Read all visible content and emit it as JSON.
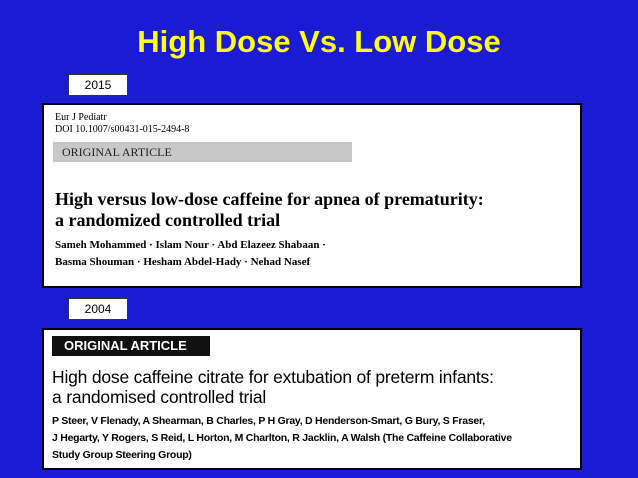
{
  "slide": {
    "title": "High Dose Vs. Low Dose",
    "papers": [
      {
        "year": "2015",
        "journal": "Eur J Pediatr",
        "doi": "DOI 10.1007/s00431-015-2494-8",
        "section": "ORIGINAL ARTICLE",
        "title_lines": [
          "High versus low-dose caffeine for apnea of prematurity:",
          "a randomized controlled trial"
        ],
        "author_lines": [
          "Sameh Mohammed · Islam Nour · Abd Elazeez Shabaan ·",
          "Basma Shouman · Hesham Abdel-Hady · Nehad Nasef"
        ]
      },
      {
        "year": "2004",
        "section": "ORIGINAL ARTICLE",
        "title_lines": [
          "High dose caffeine citrate for extubation of preterm infants:",
          "a randomised controlled trial"
        ],
        "author_lines": [
          "P Steer, V Flenady, A Shearman, B Charles, P H Gray, D Henderson-Smart, G Bury, S Fraser,",
          "J Hegarty, Y Rogers, S Reid, L Horton, M Charlton, R Jacklin, A Walsh (The Caffeine Collaborative",
          "Study Group Steering Group)"
        ]
      }
    ]
  }
}
